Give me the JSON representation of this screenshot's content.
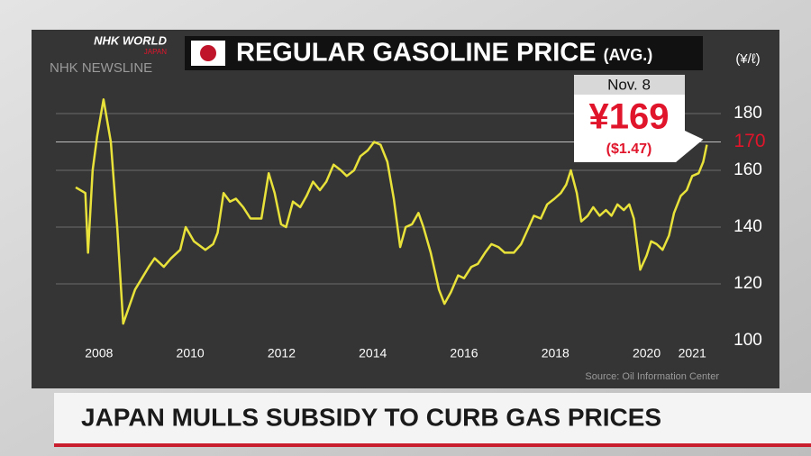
{
  "header": {
    "logo": "NHK WORLD",
    "logo_sub": "JAPAN",
    "program": "NHK NEWSLINE"
  },
  "chart_data": {
    "type": "line",
    "title": "REGULAR GASOLINE PRICE",
    "title_suffix": "(AVG.)",
    "y_axis_label": "(¥/ℓ)",
    "source": "Source: Oil Information Center",
    "x": [
      2007.49,
      2007.7,
      2007.76,
      2007.86,
      2007.96,
      2008.1,
      2008.26,
      2008.4,
      2008.53,
      2008.79,
      2009.09,
      2009.22,
      2009.42,
      2009.58,
      2009.78,
      2009.9,
      2010.08,
      2010.33,
      2010.5,
      2010.6,
      2010.73,
      2010.87,
      2011.0,
      2011.16,
      2011.32,
      2011.56,
      2011.72,
      2011.85,
      2011.99,
      2012.1,
      2012.25,
      2012.41,
      2012.55,
      2012.69,
      2012.84,
      2012.98,
      2013.14,
      2013.3,
      2013.43,
      2013.59,
      2013.73,
      2013.89,
      2014.03,
      2014.17,
      2014.32,
      2014.46,
      2014.6,
      2014.72,
      2014.86,
      2015.0,
      2015.11,
      2015.27,
      2015.45,
      2015.57,
      2015.71,
      2015.87,
      2016.0,
      2016.16,
      2016.3,
      2016.46,
      2016.6,
      2016.75,
      2016.89,
      2017.09,
      2017.25,
      2017.39,
      2017.53,
      2017.68,
      2017.82,
      2017.98,
      2018.12,
      2018.24,
      2018.34,
      2018.47,
      2018.57,
      2018.71,
      2018.83,
      2018.97,
      2019.11,
      2019.23,
      2019.36,
      2019.5,
      2019.62,
      2019.72,
      2019.86,
      2020.0,
      2020.1,
      2020.22,
      2020.35,
      2020.49,
      2020.6,
      2020.75,
      2020.88,
      2021.0,
      2021.14,
      2021.24,
      2021.32
    ],
    "values": [
      154,
      152,
      131,
      160,
      172,
      185,
      170,
      140,
      106,
      118,
      126,
      129,
      126,
      129,
      132,
      140,
      135,
      132,
      134,
      138,
      152,
      149,
      150,
      147,
      143,
      143,
      159,
      152,
      141,
      140,
      149,
      147,
      151,
      156,
      153,
      156,
      162,
      160,
      158,
      160,
      165,
      167,
      170,
      169,
      163,
      150,
      133,
      140,
      141,
      145,
      140,
      131,
      118,
      113,
      117,
      123,
      122,
      126,
      127,
      131,
      134,
      133,
      131,
      131,
      134,
      139,
      144,
      143,
      148,
      150,
      152,
      155,
      160,
      152,
      142,
      144,
      147,
      144,
      146,
      144,
      148,
      146,
      148,
      143,
      125,
      130,
      135,
      134,
      132,
      137,
      145,
      151,
      153,
      158,
      159,
      163,
      169
    ],
    "color": "#e8e23a",
    "xlim": [
      2007.45,
      2021.45
    ],
    "xticks": [
      2008,
      2010,
      2012,
      2014,
      2016,
      2018,
      2020,
      2021
    ],
    "ylim": [
      100,
      190
    ],
    "yticks": [
      100,
      120,
      140,
      160,
      180
    ],
    "grid": true,
    "reference_line": 170,
    "reference_color": "#e0152b",
    "annotation": {
      "date": "Nov. 8",
      "label": "¥169",
      "usd_label": "($1.47)"
    }
  },
  "headline": "JAPAN MULLS SUBSIDY TO CURB GAS PRICES"
}
